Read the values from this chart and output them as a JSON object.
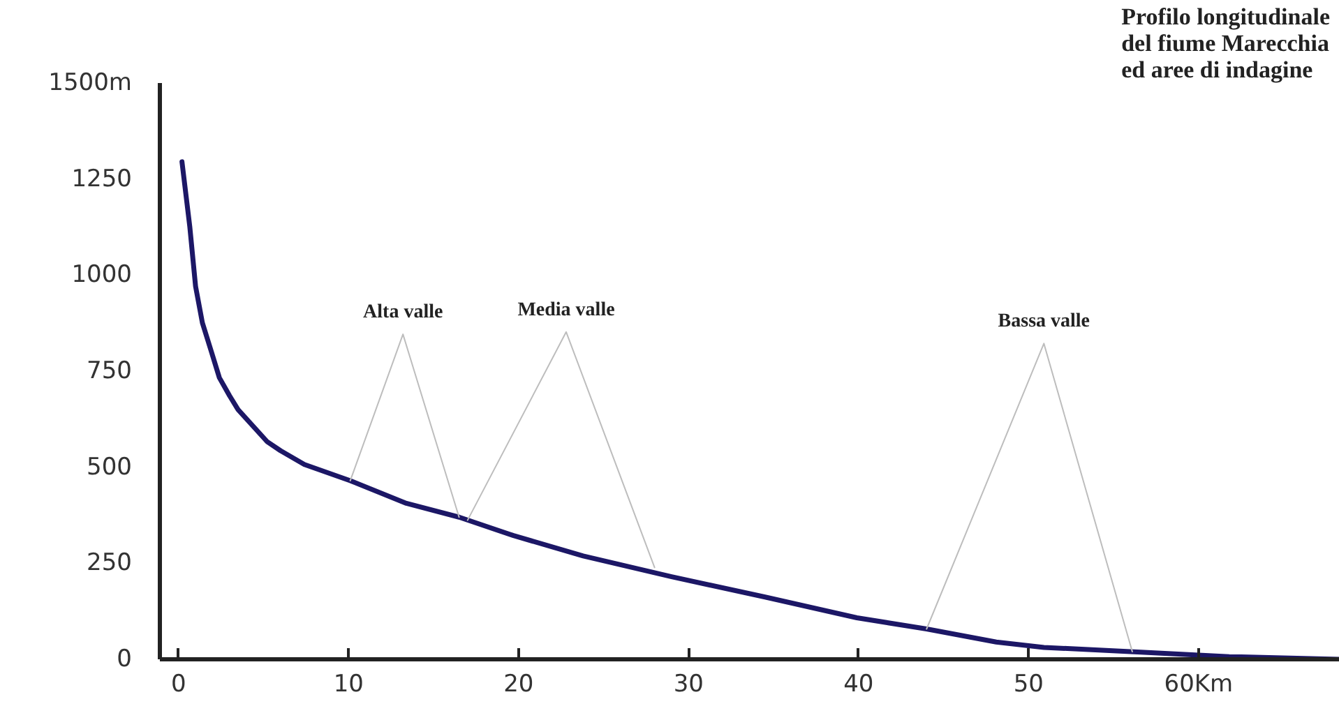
{
  "chart_data": {
    "type": "line",
    "title": "Profilo longitudinale\ndel fiume Marecchia\ned aree di indagine",
    "x": [
      0.2,
      0.66,
      1.0,
      1.4,
      1.9,
      2.4,
      3.0,
      3.5,
      5.2,
      6.0,
      7.4,
      10.1,
      13.4,
      16.5,
      19.7,
      23.8,
      29.0,
      34.5,
      39.9,
      44.0,
      48.1,
      50.9,
      56.4,
      61.8,
      68.3
    ],
    "series": [
      {
        "color": "#1c1766",
        "values": [
          1295,
          1126,
          971,
          876,
          805,
          733,
          686,
          650,
          567,
          543,
          507,
          465,
          406,
          370,
          322,
          269,
          215,
          162,
          108,
          79,
          45,
          31,
          19,
          7,
          0
        ]
      },
      {
        "type": "line",
        "color": "#bdbdbd",
        "x": [
          10.1,
          13.2,
          16.5
        ],
        "values": [
          465,
          846,
          370
        ]
      },
      {
        "type": "line",
        "color": "#bdbdbd",
        "x": [
          17.0,
          22.8,
          28.0
        ],
        "values": [
          362,
          852,
          239
        ]
      },
      {
        "type": "line",
        "color": "#bdbdbd",
        "x": [
          44.0,
          50.9,
          56.1
        ],
        "values": [
          79,
          822,
          20
        ]
      }
    ],
    "annotations": [
      {
        "text": "Alta valle",
        "x": 13.2,
        "y": 846
      },
      {
        "text": "Media valle",
        "x": 22.8,
        "y": 852
      },
      {
        "text": "Bassa valle",
        "x": 50.9,
        "y": 822
      }
    ],
    "xlim": [
      -1.1,
      68.3
    ],
    "ylim": [
      0,
      1500
    ],
    "xticks": [
      0,
      10,
      20,
      30,
      40,
      50,
      {
        "value": 60,
        "label": "60Km"
      }
    ],
    "yticks": [
      0,
      250,
      500,
      750,
      1000,
      1250,
      {
        "value": 1500,
        "label": "1500m"
      }
    ],
    "grid": false,
    "marker": "none",
    "line_style": "solid"
  }
}
